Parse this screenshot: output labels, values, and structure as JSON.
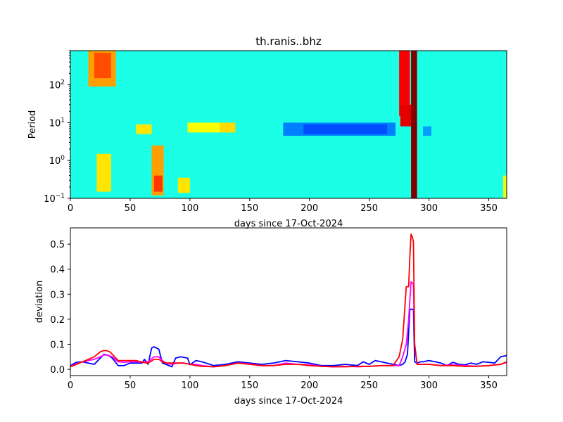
{
  "chart_data": [
    {
      "type": "heatmap",
      "title": "th.ranis..bhz",
      "xlabel": "days since 17-Oct-2024",
      "ylabel": "Period",
      "xlim": [
        0,
        365
      ],
      "ylim": [
        0.1,
        800
      ],
      "yscale": "log",
      "colormap": "jet",
      "x_ticks": [
        0,
        50,
        100,
        150,
        200,
        250,
        300,
        350
      ],
      "y_ticks": [
        {
          "value": 0.1,
          "base": "10",
          "exp": "−1"
        },
        {
          "value": 1,
          "base": "10",
          "exp": "0"
        },
        {
          "value": 10,
          "base": "10",
          "exp": "1"
        },
        {
          "value": 100,
          "base": "10",
          "exp": "2"
        }
      ],
      "background_level": 0.4,
      "features": [
        {
          "x0": 15,
          "x1": 38,
          "p0": 90,
          "p1": 800,
          "level": 0.72
        },
        {
          "x0": 20,
          "x1": 34,
          "p0": 150,
          "p1": 700,
          "level": 0.8
        },
        {
          "x0": 22,
          "x1": 34,
          "p0": 0.15,
          "p1": 1.5,
          "level": 0.65
        },
        {
          "x0": 55,
          "x1": 68,
          "p0": 5,
          "p1": 9,
          "level": 0.65
        },
        {
          "x0": 68,
          "x1": 78,
          "p0": 0.12,
          "p1": 2.5,
          "level": 0.72
        },
        {
          "x0": 70,
          "x1": 77,
          "p0": 0.15,
          "p1": 0.4,
          "level": 0.82
        },
        {
          "x0": 90,
          "x1": 100,
          "p0": 0.14,
          "p1": 0.35,
          "level": 0.65
        },
        {
          "x0": 98,
          "x1": 125,
          "p0": 5.5,
          "p1": 10,
          "level": 0.62
        },
        {
          "x0": 125,
          "x1": 138,
          "p0": 5.5,
          "p1": 10,
          "level": 0.66
        },
        {
          "x0": 178,
          "x1": 272,
          "p0": 4.5,
          "p1": 10,
          "level": 0.25
        },
        {
          "x0": 195,
          "x1": 265,
          "p0": 5,
          "p1": 9,
          "level": 0.2
        },
        {
          "x0": 275,
          "x1": 284,
          "p0": 15,
          "p1": 800,
          "level": 0.88
        },
        {
          "x0": 276,
          "x1": 288,
          "p0": 8,
          "p1": 30,
          "level": 0.9
        },
        {
          "x0": 285,
          "x1": 290,
          "p0": 0.1,
          "p1": 800,
          "level": 1.0
        },
        {
          "x0": 295,
          "x1": 302,
          "p0": 4.5,
          "p1": 8,
          "level": 0.28
        },
        {
          "x0": 362,
          "x1": 365,
          "p0": 0.1,
          "p1": 0.4,
          "level": 0.6
        }
      ]
    },
    {
      "type": "line",
      "xlabel": "days since 17-Oct-2024",
      "ylabel": "deviation",
      "xlim": [
        0,
        365
      ],
      "ylim": [
        -0.025,
        0.565
      ],
      "x_ticks": [
        0,
        50,
        100,
        150,
        200,
        250,
        300,
        350
      ],
      "y_ticks": [
        0.0,
        0.1,
        0.2,
        0.3,
        0.4,
        0.5
      ],
      "series": [
        {
          "color": "#0000ff",
          "x": [
            0,
            5,
            10,
            15,
            20,
            25,
            28,
            32,
            35,
            40,
            45,
            50,
            55,
            60,
            62,
            65,
            68,
            70,
            74,
            77,
            80,
            85,
            88,
            92,
            98,
            100,
            105,
            110,
            120,
            130,
            140,
            150,
            160,
            170,
            180,
            190,
            200,
            210,
            220,
            230,
            240,
            245,
            250,
            255,
            260,
            265,
            270,
            275,
            278,
            280,
            282,
            284,
            285,
            287,
            288,
            290,
            293,
            295,
            300,
            305,
            310,
            315,
            320,
            325,
            330,
            335,
            340,
            345,
            350,
            355,
            360,
            365
          ],
          "values": [
            0.015,
            0.028,
            0.03,
            0.025,
            0.02,
            0.045,
            0.06,
            0.055,
            0.045,
            0.015,
            0.015,
            0.025,
            0.025,
            0.025,
            0.04,
            0.02,
            0.085,
            0.09,
            0.08,
            0.025,
            0.02,
            0.01,
            0.045,
            0.05,
            0.045,
            0.018,
            0.035,
            0.03,
            0.015,
            0.02,
            0.03,
            0.025,
            0.02,
            0.025,
            0.035,
            0.03,
            0.025,
            0.015,
            0.015,
            0.02,
            0.015,
            0.03,
            0.02,
            0.035,
            0.03,
            0.025,
            0.02,
            0.015,
            0.02,
            0.03,
            0.06,
            0.24,
            0.24,
            0.24,
            0.03,
            0.025,
            0.03,
            0.03,
            0.035,
            0.03,
            0.025,
            0.015,
            0.028,
            0.02,
            0.018,
            0.025,
            0.02,
            0.03,
            0.028,
            0.025,
            0.05,
            0.055
          ]
        },
        {
          "color": "#ff00ff",
          "x": [
            0,
            5,
            10,
            15,
            20,
            25,
            28,
            32,
            35,
            40,
            45,
            50,
            55,
            60,
            65,
            70,
            74,
            77,
            80,
            85,
            90,
            95,
            100,
            105,
            110,
            120,
            130,
            140,
            150,
            160,
            170,
            180,
            190,
            200,
            210,
            220,
            230,
            240,
            250,
            260,
            270,
            275,
            278,
            281,
            283,
            285,
            287,
            288,
            290,
            295,
            300,
            310,
            320,
            330,
            340,
            350,
            360,
            365
          ],
          "values": [
            0.012,
            0.022,
            0.03,
            0.035,
            0.04,
            0.05,
            0.058,
            0.055,
            0.05,
            0.03,
            0.028,
            0.03,
            0.03,
            0.03,
            0.03,
            0.05,
            0.05,
            0.035,
            0.025,
            0.02,
            0.025,
            0.025,
            0.02,
            0.02,
            0.015,
            0.01,
            0.015,
            0.025,
            0.022,
            0.015,
            0.015,
            0.025,
            0.02,
            0.018,
            0.012,
            0.01,
            0.012,
            0.01,
            0.012,
            0.015,
            0.015,
            0.015,
            0.05,
            0.1,
            0.2,
            0.35,
            0.34,
            0.1,
            0.02,
            0.02,
            0.02,
            0.015,
            0.018,
            0.015,
            0.012,
            0.015,
            0.02,
            0.028
          ]
        },
        {
          "color": "#ff0000",
          "x": [
            0,
            5,
            10,
            15,
            20,
            25,
            28,
            30,
            33,
            36,
            40,
            45,
            50,
            55,
            60,
            65,
            70,
            74,
            77,
            80,
            85,
            90,
            95,
            100,
            105,
            110,
            120,
            130,
            140,
            150,
            160,
            170,
            180,
            190,
            200,
            210,
            220,
            230,
            240,
            250,
            260,
            270,
            275,
            278,
            281,
            283,
            284,
            285,
            286,
            287,
            288,
            290,
            295,
            300,
            310,
            320,
            330,
            340,
            350,
            360,
            365
          ],
          "values": [
            0.01,
            0.02,
            0.03,
            0.04,
            0.05,
            0.07,
            0.075,
            0.075,
            0.07,
            0.055,
            0.035,
            0.035,
            0.035,
            0.035,
            0.028,
            0.025,
            0.04,
            0.04,
            0.03,
            0.025,
            0.025,
            0.025,
            0.025,
            0.02,
            0.015,
            0.012,
            0.01,
            0.015,
            0.025,
            0.02,
            0.015,
            0.015,
            0.02,
            0.02,
            0.015,
            0.012,
            0.01,
            0.01,
            0.012,
            0.012,
            0.015,
            0.015,
            0.05,
            0.12,
            0.33,
            0.33,
            0.45,
            0.54,
            0.53,
            0.51,
            0.1,
            0.02,
            0.02,
            0.02,
            0.015,
            0.015,
            0.012,
            0.012,
            0.015,
            0.02,
            0.03
          ]
        }
      ]
    }
  ]
}
